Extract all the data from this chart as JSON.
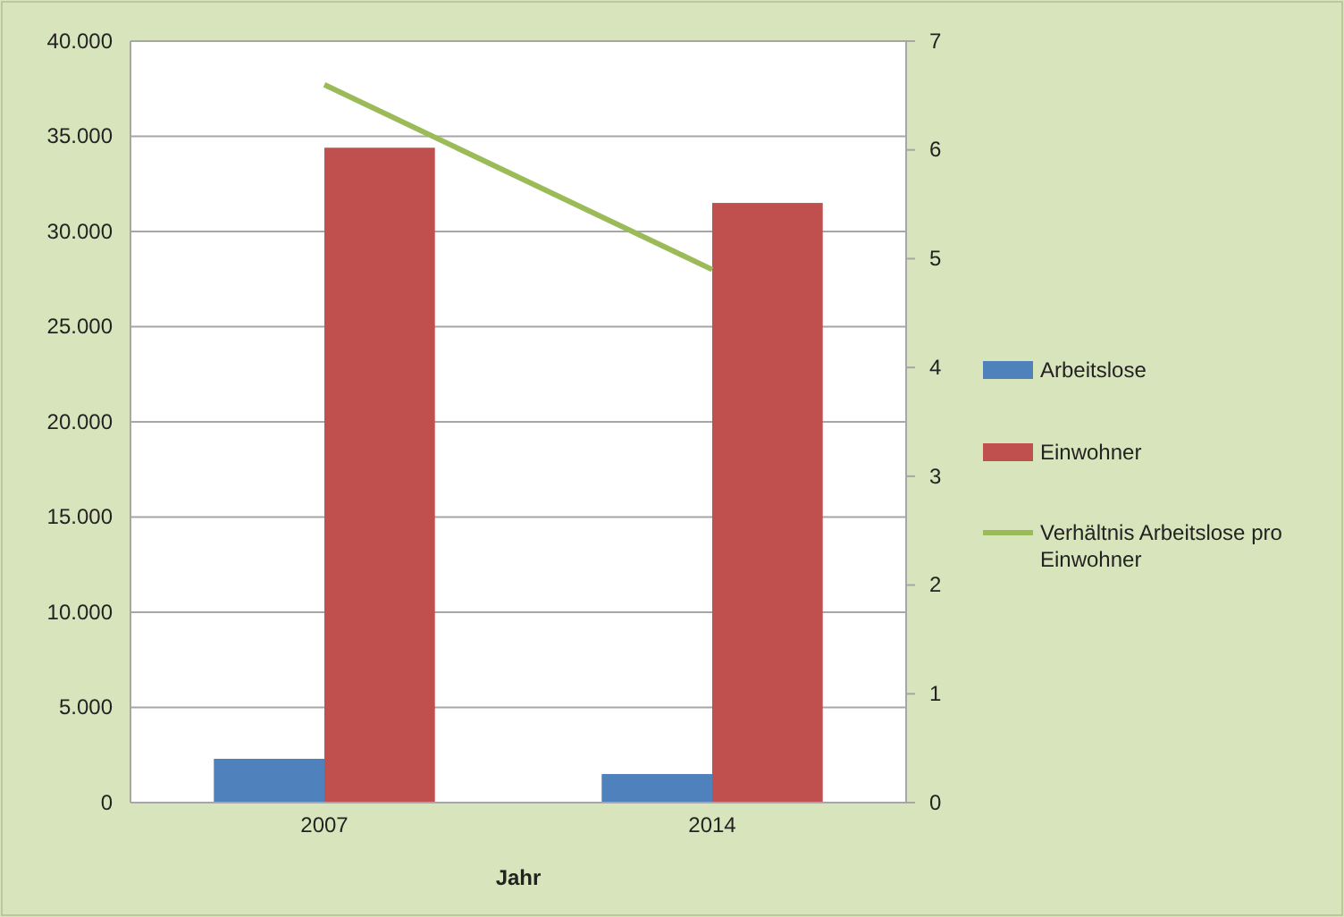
{
  "chart_data": {
    "type": "bar",
    "xlabel": "Jahr",
    "categories": [
      "2007",
      "2014"
    ],
    "series": [
      {
        "name": "Arbeitslose",
        "color": "#4f81bd",
        "values": [
          2300,
          1500
        ]
      },
      {
        "name": "Einwohner",
        "color": "#c0504d",
        "values": [
          34400,
          31500
        ]
      },
      {
        "name": "Verhältnis Arbeitslose pro Einwohner",
        "type": "line",
        "axis": "y2",
        "color": "#9bbb59",
        "values": [
          6.6,
          4.9
        ]
      }
    ],
    "ylim": [
      0,
      40000
    ],
    "yticks": [
      {
        "value": 0,
        "label": "0"
      },
      {
        "value": 5000,
        "label": "5.000"
      },
      {
        "value": 10000,
        "label": "10.000"
      },
      {
        "value": 15000,
        "label": "15.000"
      },
      {
        "value": 20000,
        "label": "20.000"
      },
      {
        "value": 25000,
        "label": "25.000"
      },
      {
        "value": 30000,
        "label": "30.000"
      },
      {
        "value": 35000,
        "label": "35.000"
      },
      {
        "value": 40000,
        "label": "40.000"
      }
    ],
    "y2lim": [
      0,
      7
    ],
    "y2ticks": [
      0,
      1,
      2,
      3,
      4,
      5,
      6,
      7
    ],
    "grid": "y",
    "legend": "right",
    "marker": "none"
  }
}
